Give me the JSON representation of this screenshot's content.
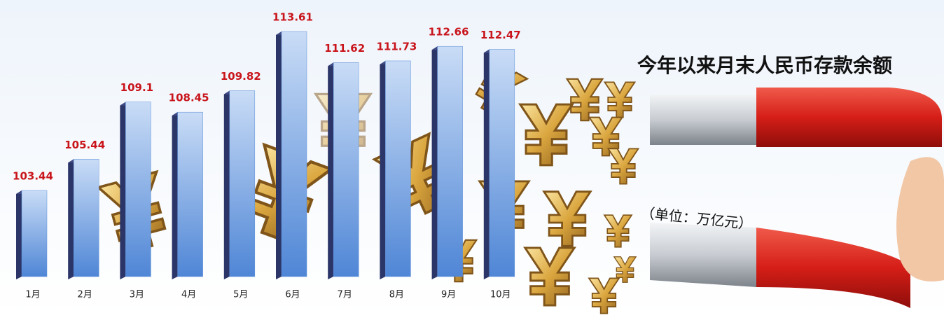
{
  "chart_data": {
    "type": "bar",
    "title": "今年以来月末人民币存款余额",
    "subtitle": "（单位：万亿元）",
    "categories": [
      "1月",
      "2月",
      "3月",
      "4月",
      "5月",
      "6月",
      "7月",
      "8月",
      "9月",
      "10月"
    ],
    "values": [
      103.44,
      105.44,
      109.1,
      108.45,
      109.82,
      113.61,
      111.62,
      111.73,
      112.66,
      112.47
    ],
    "color": "#5b8ed8"
  }
}
